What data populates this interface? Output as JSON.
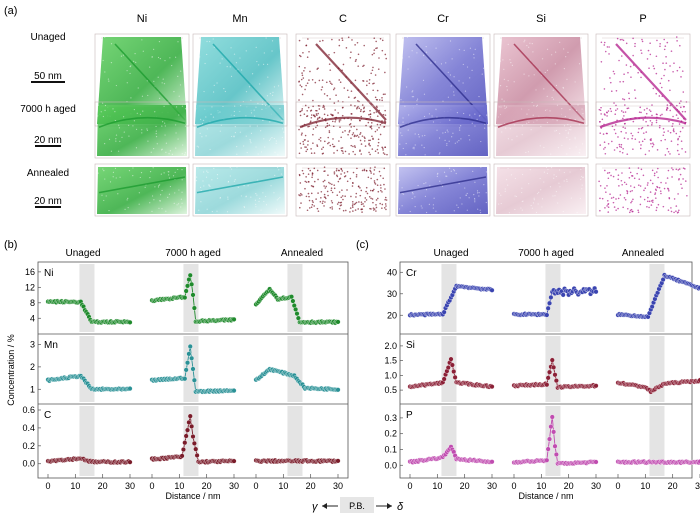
{
  "panel_a": {
    "label": "(a)",
    "columns": [
      {
        "name": "Ni",
        "color": "#1a9a2e"
      },
      {
        "name": "Mn",
        "color": "#1aa6a8"
      },
      {
        "name": "C",
        "color": "#7a1a2a"
      },
      {
        "name": "Cr",
        "color": "#3333b0"
      },
      {
        "name": "Si",
        "color": "#a22a4a"
      },
      {
        "name": "P",
        "color": "#b21a8a"
      }
    ],
    "rows": [
      {
        "label": "Unaged",
        "scale": "50 nm"
      },
      {
        "label": "7000 h aged",
        "scale": "20 nm"
      },
      {
        "label": "Annealed",
        "scale": "20 nm"
      }
    ]
  },
  "panel_b": {
    "label": "(b)",
    "conditions": [
      "Unaged",
      "7000 h aged",
      "Annealed"
    ],
    "ylabel": "Concentration / %",
    "xlabel": "Distance / nm",
    "elements": [
      "Ni",
      "Mn",
      "C"
    ]
  },
  "panel_c": {
    "label": "(c)",
    "conditions": [
      "Unaged",
      "7000 h aged",
      "Annealed"
    ],
    "xlabel": "Distance / nm",
    "elements": [
      "Cr",
      "Si",
      "P"
    ]
  },
  "footer": {
    "left": "γ",
    "center": "P.B.",
    "right": "δ"
  },
  "chart_data": [
    {
      "type": "line",
      "element": "Ni",
      "ylim": [
        2,
        17
      ],
      "yticks": [
        "4",
        "8",
        "12",
        "16"
      ],
      "xlim": [
        0,
        30
      ],
      "xticks": [
        "0",
        "10",
        "20",
        "30"
      ],
      "color": "#1f8a2c",
      "series": [
        {
          "name": "",
          "x": [
            0,
            12,
            16,
            30
          ],
          "y": [
            8.3,
            8.2,
            3.0,
            3.1
          ]
        },
        {
          "name": "",
          "x": [
            0,
            12,
            14,
            15,
            16,
            30
          ],
          "y": [
            8.6,
            9.5,
            15.3,
            10,
            3.2,
            3.6
          ]
        },
        {
          "name": "",
          "x": [
            0,
            5,
            8,
            13,
            16,
            30
          ],
          "y": [
            7.6,
            11.6,
            9.0,
            9.5,
            3.0,
            3.0
          ]
        }
      ]
    },
    {
      "type": "line",
      "element": "Mn",
      "ylim": [
        0.7,
        3.2
      ],
      "yticks": [
        "1",
        "2",
        "3"
      ],
      "xlim": [
        0,
        30
      ],
      "xticks": [
        "0",
        "10",
        "20",
        "30"
      ],
      "color": "#2a9196",
      "series": [
        {
          "name": "",
          "x": [
            0,
            12,
            16,
            30
          ],
          "y": [
            1.4,
            1.6,
            1.0,
            1.0
          ]
        },
        {
          "name": "",
          "x": [
            0,
            12,
            14,
            15,
            16,
            30
          ],
          "y": [
            1.4,
            1.5,
            2.9,
            1.9,
            0.9,
            0.95
          ]
        },
        {
          "name": "",
          "x": [
            0,
            5,
            14,
            18,
            30
          ],
          "y": [
            1.4,
            1.9,
            1.6,
            1.05,
            1.0
          ]
        }
      ]
    },
    {
      "type": "line",
      "element": "C",
      "ylim": [
        -0.07,
        0.6
      ],
      "yticks": [
        "0.0",
        "0.2",
        "0.4",
        "0.6"
      ],
      "xlim": [
        0,
        30
      ],
      "xticks": [
        "0",
        "10",
        "20",
        "30"
      ],
      "color": "#7a1c2a",
      "series": [
        {
          "name": "",
          "x": [
            0,
            12,
            16,
            30
          ],
          "y": [
            0.03,
            0.06,
            0.02,
            0.02
          ]
        },
        {
          "name": "",
          "x": [
            0,
            11,
            14,
            15,
            17,
            30
          ],
          "y": [
            0.05,
            0.08,
            0.53,
            0.3,
            0.02,
            0.03
          ]
        },
        {
          "name": "",
          "x": [
            0,
            30
          ],
          "y": [
            0.03,
            0.03
          ]
        }
      ]
    },
    {
      "type": "line",
      "element": "Cr",
      "ylim": [
        15,
        42
      ],
      "yticks": [
        "20",
        "30",
        "40"
      ],
      "xlim": [
        0,
        30
      ],
      "xticks": [
        "0",
        "10",
        "20",
        "30"
      ],
      "color": "#3a44b0",
      "series": [
        {
          "name": "",
          "x": [
            0,
            12,
            17,
            30
          ],
          "y": [
            20.2,
            20.5,
            33.6,
            31.8
          ]
        },
        {
          "name": "",
          "x": [
            0,
            12,
            14,
            30
          ],
          "y": [
            20.4,
            20.4,
            31.0,
            31.0
          ]
        },
        {
          "name": "",
          "x": [
            0,
            11,
            17,
            30
          ],
          "y": [
            20.4,
            19.3,
            38.5,
            32.5
          ]
        }
      ]
    },
    {
      "type": "line",
      "element": "Si",
      "ylim": [
        0.3,
        2.2
      ],
      "yticks": [
        "0.5",
        "1.0",
        "1.5",
        "2.0"
      ],
      "xlim": [
        0,
        30
      ],
      "xticks": [
        "0",
        "10",
        "20",
        "30"
      ],
      "color": "#8b2036",
      "series": [
        {
          "name": "",
          "x": [
            0,
            12,
            15,
            17,
            30
          ],
          "y": [
            0.62,
            0.75,
            1.55,
            0.75,
            0.62
          ]
        },
        {
          "name": "",
          "x": [
            0,
            12,
            14,
            15,
            16,
            30
          ],
          "y": [
            0.65,
            0.7,
            1.5,
            1.0,
            0.6,
            0.65
          ]
        },
        {
          "name": "",
          "x": [
            0,
            10,
            12,
            17,
            30
          ],
          "y": [
            0.75,
            0.6,
            0.45,
            0.72,
            0.82
          ]
        }
      ]
    },
    {
      "type": "line",
      "element": "P",
      "ylim": [
        -0.03,
        0.35
      ],
      "yticks": [
        "0.0",
        "0.1",
        "0.2",
        "0.3"
      ],
      "xlim": [
        0,
        30
      ],
      "xticks": [
        "0",
        "10",
        "20",
        "30"
      ],
      "color": "#c04cb0",
      "series": [
        {
          "name": "",
          "x": [
            0,
            12,
            15,
            17,
            30
          ],
          "y": [
            0.02,
            0.05,
            0.12,
            0.04,
            0.02
          ]
        },
        {
          "name": "",
          "x": [
            0,
            12,
            14,
            15,
            16,
            30
          ],
          "y": [
            0.02,
            0.03,
            0.31,
            0.12,
            0.01,
            0.02
          ]
        },
        {
          "name": "",
          "x": [
            0,
            30
          ],
          "y": [
            0.02,
            0.02
          ]
        }
      ]
    }
  ]
}
